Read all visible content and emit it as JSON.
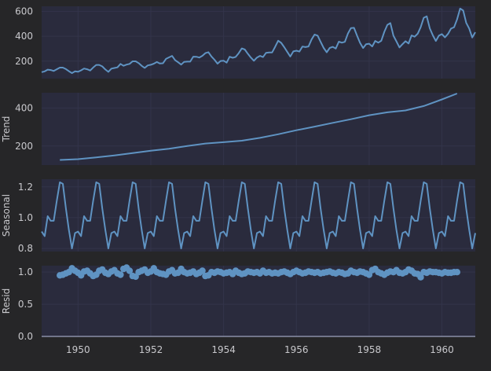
{
  "chart_data": [
    {
      "type": "line",
      "panel": "observed",
      "ylabel": "",
      "yticks": [
        200,
        400,
        600
      ],
      "ylim": [
        60,
        640
      ],
      "x": [
        1949.0,
        1949.0833,
        1949.1667,
        1949.25,
        1949.3333,
        1949.4167,
        1949.5,
        1949.5833,
        1949.6667,
        1949.75,
        1949.8333,
        1949.9167,
        1950.0,
        1950.0833,
        1950.1667,
        1950.25,
        1950.3333,
        1950.4167,
        1950.5,
        1950.5833,
        1950.6667,
        1950.75,
        1950.8333,
        1950.9167,
        1951.0,
        1951.0833,
        1951.1667,
        1951.25,
        1951.3333,
        1951.4167,
        1951.5,
        1951.5833,
        1951.6667,
        1951.75,
        1951.8333,
        1951.9167,
        1952.0,
        1952.0833,
        1952.1667,
        1952.25,
        1952.3333,
        1952.4167,
        1952.5,
        1952.5833,
        1952.6667,
        1952.75,
        1952.8333,
        1952.9167,
        1953.0,
        1953.0833,
        1953.1667,
        1953.25,
        1953.3333,
        1953.4167,
        1953.5,
        1953.5833,
        1953.6667,
        1953.75,
        1953.8333,
        1953.9167,
        1954.0,
        1954.0833,
        1954.1667,
        1954.25,
        1954.3333,
        1954.4167,
        1954.5,
        1954.5833,
        1954.6667,
        1954.75,
        1954.8333,
        1954.9167,
        1955.0,
        1955.0833,
        1955.1667,
        1955.25,
        1955.3333,
        1955.4167,
        1955.5,
        1955.5833,
        1955.6667,
        1955.75,
        1955.8333,
        1955.9167,
        1956.0,
        1956.0833,
        1956.1667,
        1956.25,
        1956.3333,
        1956.4167,
        1956.5,
        1956.5833,
        1956.6667,
        1956.75,
        1956.8333,
        1956.9167,
        1957.0,
        1957.0833,
        1957.1667,
        1957.25,
        1957.3333,
        1957.4167,
        1957.5,
        1957.5833,
        1957.6667,
        1957.75,
        1957.8333,
        1957.9167,
        1958.0,
        1958.0833,
        1958.1667,
        1958.25,
        1958.3333,
        1958.4167,
        1958.5,
        1958.5833,
        1958.6667,
        1958.75,
        1958.8333,
        1958.9167,
        1959.0,
        1959.0833,
        1959.1667,
        1959.25,
        1959.3333,
        1959.4167,
        1959.5,
        1959.5833,
        1959.6667,
        1959.75,
        1959.8333,
        1959.9167,
        1960.0,
        1960.0833,
        1960.1667,
        1960.25,
        1960.3333,
        1960.4167,
        1960.5,
        1960.5833,
        1960.6667,
        1960.75,
        1960.8333,
        1960.9167
      ],
      "values": [
        112,
        118,
        132,
        129,
        121,
        135,
        148,
        148,
        136,
        119,
        104,
        118,
        115,
        126,
        141,
        135,
        125,
        149,
        170,
        170,
        158,
        133,
        114,
        140,
        145,
        150,
        178,
        163,
        172,
        178,
        199,
        199,
        184,
        162,
        146,
        166,
        171,
        180,
        193,
        181,
        183,
        218,
        230,
        242,
        209,
        191,
        172,
        194,
        196,
        196,
        236,
        235,
        229,
        243,
        264,
        272,
        237,
        211,
        180,
        201,
        204,
        188,
        235,
        227,
        234,
        264,
        302,
        293,
        259,
        229,
        203,
        229,
        242,
        233,
        267,
        269,
        270,
        315,
        364,
        347,
        312,
        274,
        237,
        278,
        284,
        277,
        317,
        313,
        318,
        374,
        413,
        405,
        355,
        306,
        271,
        306,
        315,
        301,
        356,
        348,
        355,
        422,
        465,
        467,
        404,
        347,
        305,
        336,
        340,
        318,
        362,
        348,
        363,
        435,
        491,
        505,
        404,
        359,
        310,
        337,
        360,
        342,
        406,
        396,
        420,
        472,
        548,
        559,
        463,
        407,
        362,
        405,
        417,
        391,
        419,
        461,
        472,
        535,
        622,
        606,
        508,
        461,
        390,
        432
      ]
    },
    {
      "type": "line",
      "panel": "trend",
      "ylabel": "Trend",
      "yticks": [
        200,
        400
      ],
      "ylim": [
        100,
        480
      ],
      "x": [
        1949.5,
        1950.0,
        1950.5,
        1951.0,
        1951.5,
        1952.0,
        1952.5,
        1953.0,
        1953.5,
        1954.0,
        1954.5,
        1955.0,
        1955.5,
        1956.0,
        1956.5,
        1957.0,
        1957.5,
        1958.0,
        1958.5,
        1959.0,
        1959.5,
        1960.0,
        1960.4167
      ],
      "values": [
        127,
        131,
        140,
        151,
        163,
        175,
        186,
        200,
        213,
        220,
        228,
        243,
        262,
        283,
        302,
        322,
        341,
        362,
        377,
        387,
        410,
        445,
        476
      ]
    },
    {
      "type": "line",
      "panel": "seasonal",
      "ylabel": "Seasonal",
      "yticks": [
        0.8,
        1.0,
        1.2
      ],
      "ylim": [
        0.78,
        1.25
      ],
      "pattern": [
        0.91,
        0.88,
        1.01,
        0.98,
        0.98,
        1.11,
        1.23,
        1.22,
        1.06,
        0.92,
        0.8,
        0.9
      ],
      "x_start": 1949.0,
      "x_end": 1960.9167
    },
    {
      "type": "scatter",
      "panel": "resid",
      "ylabel": "Resid",
      "yticks": [
        0.0,
        0.5,
        1.0
      ],
      "ylim": [
        0.0,
        1.1
      ],
      "x_start": 1949.5,
      "x_end": 1960.4167,
      "values": [
        0.95,
        0.96,
        0.98,
        1.0,
        1.06,
        1.02,
        0.99,
        0.95,
        1.01,
        1.02,
        0.98,
        0.94,
        0.96,
        1.02,
        1.04,
        0.99,
        0.97,
        1.01,
        1.03,
        0.98,
        0.96,
        1.05,
        1.07,
        1.02,
        0.94,
        0.93,
        1.0,
        1.02,
        1.04,
        0.99,
        1.01,
        1.06,
        1.0,
        0.98,
        0.97,
        0.96,
        1.01,
        1.03,
        0.98,
        0.99,
        1.05,
        1.0,
        0.98,
        0.99,
        1.01,
        0.97,
        0.99,
        1.02,
        0.94,
        0.95,
        1.0,
        0.99,
        1.01,
        1.0,
        0.98,
        0.99,
        1.0,
        0.97,
        1.02,
        0.99,
        0.97,
        0.98,
        1.01,
        1.0,
        0.99,
        1.0,
        0.98,
        1.02,
        0.99,
        1.0,
        0.98,
        0.99,
        0.98,
        1.0,
        1.01,
        0.99,
        0.97,
        1.0,
        1.02,
        1.0,
        0.98,
        0.99,
        1.01,
        1.0,
        0.99,
        1.0,
        0.98,
        0.99,
        1.0,
        1.01,
        0.99,
        0.98,
        1.0,
        0.99,
        0.97,
        0.98,
        1.02,
        1.0,
        0.99,
        1.01,
        1.0,
        0.98,
        0.96,
        1.03,
        1.05,
        1.0,
        0.98,
        0.96,
        0.99,
        1.01,
        1.0,
        1.03,
        0.99,
        0.98,
        1.0,
        1.04,
        1.02,
        0.98,
        0.97,
        0.92,
        1.0,
        0.99,
        1.01,
        1.0,
        1.0,
        0.99,
        0.98,
        1.0,
        0.99,
        0.99,
        1.0,
        1.0
      ]
    }
  ],
  "x_axis": {
    "xlim": [
      1949.0,
      1960.9167
    ],
    "tick_values": [
      1950,
      1952,
      1954,
      1956,
      1958,
      1960
    ],
    "tick_labels": [
      "1950",
      "1952",
      "1954",
      "1956",
      "1958",
      "1960"
    ]
  },
  "colors": {
    "figure_bg": "#262628",
    "plot_bg": "#2a2b3d",
    "series": "#5f93c2",
    "grid": "#33344a",
    "text": "#c8c8cc"
  }
}
